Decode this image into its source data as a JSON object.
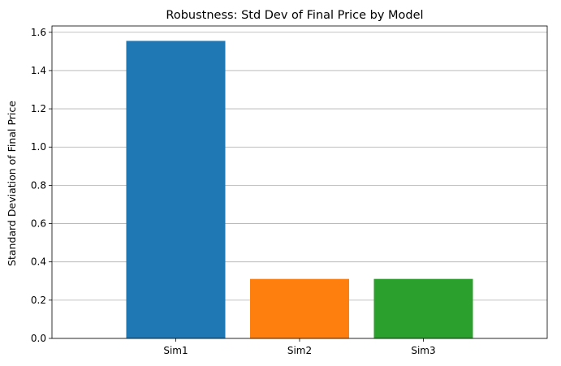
{
  "chart_data": {
    "type": "bar",
    "title": "Robustness: Std Dev of Final Price by Model",
    "xlabel": "",
    "ylabel": "Standard Deviation of Final Price",
    "categories": [
      "Sim1",
      "Sim2",
      "Sim3"
    ],
    "values": [
      1.555,
      0.311,
      0.311
    ],
    "colors": [
      "#1f77b4",
      "#ff7f0e",
      "#2ca02c"
    ],
    "ylim": [
      0,
      1.633
    ],
    "yticks": [
      0.0,
      0.2,
      0.4,
      0.6,
      0.8,
      1.0,
      1.2,
      1.4,
      1.6
    ],
    "ytick_labels": [
      "0.0",
      "0.2",
      "0.4",
      "0.6",
      "0.8",
      "1.0",
      "1.2",
      "1.4",
      "1.6"
    ],
    "grid": "y-major",
    "legend": "none"
  }
}
